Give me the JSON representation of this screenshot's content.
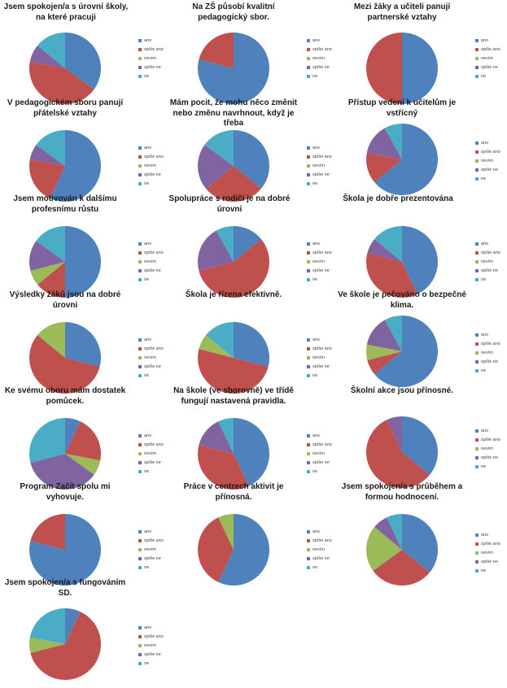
{
  "legend_labels": [
    "ano",
    "spíše ano",
    "nevím",
    "spíše ne",
    "ne"
  ],
  "colors": [
    "#4f81bd",
    "#c0504d",
    "#9bbb59",
    "#8064a2",
    "#4bacc6"
  ],
  "chart_data": [
    {
      "type": "pie",
      "title": "Jsem spokojen/a s úrovní školy, na které pracuji",
      "categories": [
        "ano",
        "spíše ano",
        "nevím",
        "spíše ne",
        "ne"
      ],
      "values": [
        35,
        43,
        0,
        8,
        14
      ]
    },
    {
      "type": "pie",
      "title": "Na ZŠ působí kvalitní pedagogický sbor.",
      "categories": [
        "ano",
        "spíše ano",
        "nevím",
        "spíše ne",
        "ne"
      ],
      "values": [
        79,
        21,
        0,
        0,
        0
      ]
    },
    {
      "type": "pie",
      "title": "Mezi žáky a učiteli panují partnerské vztahy",
      "categories": [
        "ano",
        "spíše ano",
        "nevím",
        "spíše ne",
        "ne"
      ],
      "values": [
        50,
        50,
        0,
        0,
        0
      ]
    },
    {
      "type": "pie",
      "title": "V pedagogickém sboru panují přátelské vztahy",
      "categories": [
        "ano",
        "spíše ano",
        "nevím",
        "spíše ne",
        "ne"
      ],
      "values": [
        57,
        21,
        0,
        7,
        15
      ]
    },
    {
      "type": "pie",
      "title": "Mám pocit, že mohu něco změnit nebo změnu navrhnout, když je třeba",
      "categories": [
        "ano",
        "spíše ano",
        "nevím",
        "spíše ne",
        "ne"
      ],
      "values": [
        36,
        28,
        0,
        21,
        15
      ]
    },
    {
      "type": "pie",
      "title": "Přístup vedení k učitelům je vstřícný",
      "categories": [
        "ano",
        "spíše ano",
        "nevím",
        "spíše ne",
        "ne"
      ],
      "values": [
        64,
        14,
        0,
        14,
        8
      ]
    },
    {
      "type": "pie",
      "title": "Jsem motivován k dalšímu profesnímu růstu",
      "categories": [
        "ano",
        "spíše ano",
        "nevím",
        "spíše ne",
        "ne"
      ],
      "values": [
        50,
        14,
        7,
        14,
        15
      ]
    },
    {
      "type": "pie",
      "title": "Spolupráce s rodiči je na dobré úrovni",
      "categories": [
        "ano",
        "spíše ano",
        "nevím",
        "spíše ne",
        "ne"
      ],
      "values": [
        14,
        57,
        0,
        21,
        8
      ]
    },
    {
      "type": "pie",
      "title": "Škola je dobře prezentována",
      "categories": [
        "ano",
        "spíše ano",
        "nevím",
        "spíše ne",
        "ne"
      ],
      "values": [
        43,
        36,
        0,
        7,
        14
      ]
    },
    {
      "type": "pie",
      "title": "Výsledky žáků jsou na dobré úrovni",
      "categories": [
        "ano",
        "spíše ano",
        "nevím",
        "spíše ne",
        "ne"
      ],
      "values": [
        29,
        57,
        14,
        0,
        0
      ]
    },
    {
      "type": "pie",
      "title": "Škola je řízena efektivně.",
      "categories": [
        "ano",
        "spíše ano",
        "nevím",
        "spíše ne",
        "ne"
      ],
      "values": [
        29,
        50,
        7,
        0,
        14
      ]
    },
    {
      "type": "pie",
      "title": "Ve škole je pečováno o bezpečné klima.",
      "categories": [
        "ano",
        "spíše ano",
        "nevím",
        "spíše ne",
        "ne"
      ],
      "values": [
        64,
        7,
        7,
        14,
        8
      ]
    },
    {
      "type": "pie",
      "title": "Ke svému oboru mám dostatek pomůcek.",
      "categories": [
        "ano",
        "spíše ano",
        "nevím",
        "spíše ne",
        "ne"
      ],
      "values": [
        7,
        21,
        7,
        36,
        29
      ]
    },
    {
      "type": "pie",
      "title": "Na škole (ve sborovně) ve třídě fungují nastavená pravidla.",
      "categories": [
        "ano",
        "spíše ano",
        "nevím",
        "spíše ne",
        "ne"
      ],
      "values": [
        43,
        36,
        0,
        14,
        7
      ]
    },
    {
      "type": "pie",
      "title": "Školní akce jsou přínosné.",
      "categories": [
        "ano",
        "spíše ano",
        "nevím",
        "spíše ne",
        "ne"
      ],
      "values": [
        36,
        57,
        0,
        7,
        0
      ]
    },
    {
      "type": "pie",
      "title": "Program Začít spolu mi vyhovuje.",
      "categories": [
        "ano",
        "spíše ano",
        "nevím",
        "spíše ne",
        "ne"
      ],
      "values": [
        79,
        21,
        0,
        0,
        0
      ]
    },
    {
      "type": "pie",
      "title": "Práce v centrech aktivit je přínosná.",
      "categories": [
        "ano",
        "spíše ano",
        "nevím",
        "spíše ne",
        "ne"
      ],
      "values": [
        57,
        36,
        7,
        0,
        0
      ]
    },
    {
      "type": "pie",
      "title": "Jsem spokojen/a s průběhem a formou hodnocení.",
      "categories": [
        "ano",
        "spíše ano",
        "nevím",
        "spíše ne",
        "ne"
      ],
      "values": [
        36,
        29,
        21,
        7,
        7
      ]
    },
    {
      "type": "pie",
      "title": "Jsem spokojen/a s fungováním SD.",
      "categories": [
        "ano",
        "spíše ano",
        "nevím",
        "spíše ne",
        "ne"
      ],
      "values": [
        7,
        64,
        7,
        0,
        22
      ]
    }
  ]
}
